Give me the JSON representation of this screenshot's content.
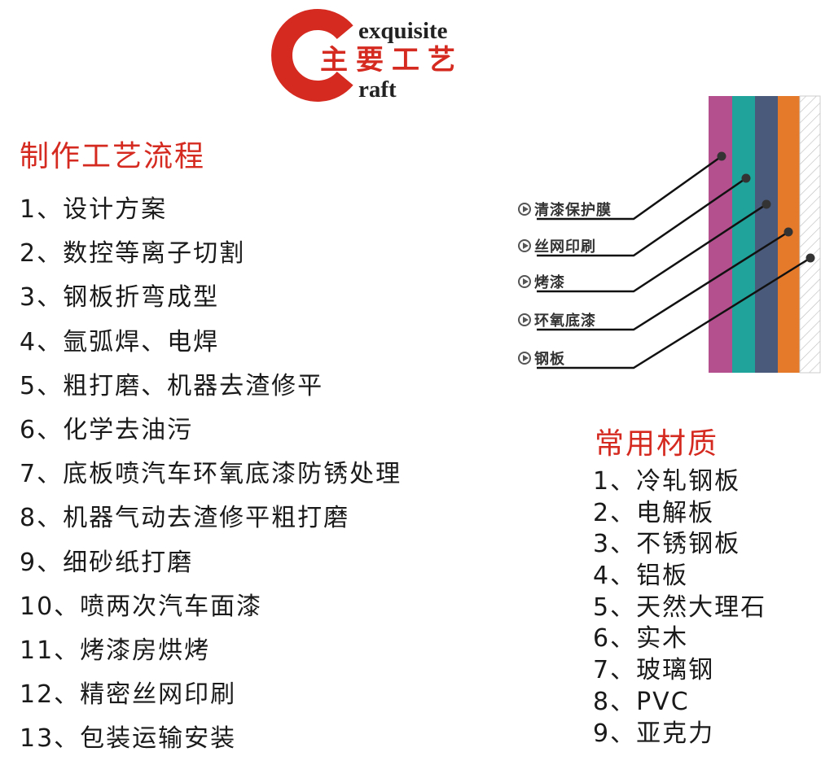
{
  "logo": {
    "letter": "C",
    "word1": "exquisite",
    "chinese": "主要工艺",
    "word2": "raft",
    "color": "#d42a20"
  },
  "process": {
    "title": "制作工艺流程",
    "steps": [
      "1、设计方案",
      "2、数控等离子切割",
      "3、钢板折弯成型",
      "4、氩弧焊、电焊",
      "5、粗打磨、机器去渣修平",
      "6、化学去油污",
      "7、底板喷汽车环氧底漆防锈处理",
      "8、机器气动去渣修平粗打磨",
      "9、细砂纸打磨",
      "10、喷两次汽车面漆",
      "11、烤漆房烘烤",
      "12、精密丝网印刷",
      "13、包装运输安装"
    ]
  },
  "layers": {
    "labels": [
      "清漆保护膜",
      "丝网印刷",
      "烤漆",
      "环氧底漆",
      "钢板"
    ],
    "colors": [
      "#b5508f",
      "#1fa39a",
      "#4a5a7a",
      "#e57a2a",
      "hatched"
    ],
    "icon": "play-circle-icon"
  },
  "materials": {
    "title": "常用材质",
    "items": [
      "1、冷轧钢板",
      "2、电解板",
      "3、不锈钢板",
      "4、铝板",
      "5、天然大理石",
      "6、实木",
      "7、玻璃钢",
      "8、PVC",
      "9、亚克力"
    ]
  }
}
